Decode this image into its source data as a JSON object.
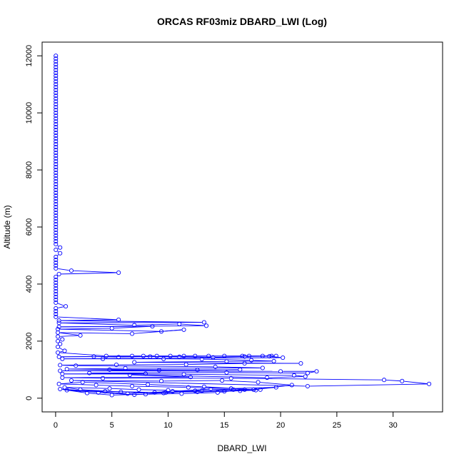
{
  "chart_data": {
    "type": "line",
    "title": "ORCAS RF03miz DBARD_LWI (Log)",
    "xlabel": "DBARD_LWI",
    "ylabel": "Altitude (m)",
    "xlim": [
      -1.2,
      34.4
    ],
    "ylim": [
      -480,
      12480
    ],
    "xticks": [
      0,
      5,
      10,
      15,
      20,
      25,
      30
    ],
    "yticks": [
      0,
      2000,
      4000,
      6000,
      8000,
      10000,
      12000
    ],
    "grid": false,
    "series_color": "#0000ff",
    "series": [
      {
        "values": [
          [
            0.02,
            12000
          ],
          [
            0.02,
            11900
          ],
          [
            0.02,
            11800
          ],
          [
            0.02,
            11700
          ],
          [
            0.02,
            11600
          ],
          [
            0.02,
            11500
          ],
          [
            0.02,
            11400
          ],
          [
            0.02,
            11300
          ],
          [
            0.02,
            11200
          ],
          [
            0.02,
            11100
          ],
          [
            0.02,
            11000
          ],
          [
            0.02,
            10900
          ],
          [
            0.02,
            10800
          ],
          [
            0.02,
            10700
          ],
          [
            0.02,
            10600
          ],
          [
            0.02,
            10500
          ],
          [
            0.02,
            10400
          ],
          [
            0.02,
            10300
          ],
          [
            0.02,
            10200
          ],
          [
            0.02,
            10100
          ],
          [
            0.02,
            10000
          ],
          [
            0.02,
            9900
          ],
          [
            0.02,
            9800
          ],
          [
            0.02,
            9700
          ],
          [
            0.02,
            9600
          ],
          [
            0.02,
            9500
          ],
          [
            0.02,
            9400
          ],
          [
            0.02,
            9300
          ],
          [
            0.02,
            9200
          ],
          [
            0.02,
            9100
          ],
          [
            0.02,
            9000
          ],
          [
            0.02,
            8900
          ],
          [
            0.02,
            8800
          ],
          [
            0.02,
            8700
          ],
          [
            0.02,
            8600
          ],
          [
            0.02,
            8500
          ],
          [
            0.02,
            8400
          ],
          [
            0.02,
            8300
          ],
          [
            0.02,
            8200
          ],
          [
            0.02,
            8100
          ],
          [
            0.02,
            8000
          ],
          [
            0.02,
            7900
          ],
          [
            0.02,
            7800
          ],
          [
            0.02,
            7700
          ],
          [
            0.02,
            7600
          ],
          [
            0.02,
            7500
          ],
          [
            0.02,
            7400
          ],
          [
            0.02,
            7300
          ],
          [
            0.02,
            7200
          ],
          [
            0.02,
            7100
          ],
          [
            0.02,
            7000
          ],
          [
            0.02,
            6900
          ],
          [
            0.02,
            6800
          ],
          [
            0.02,
            6700
          ],
          [
            0.02,
            6600
          ],
          [
            0.02,
            6500
          ],
          [
            0.02,
            6400
          ],
          [
            0.02,
            6300
          ],
          [
            0.02,
            6200
          ],
          [
            0.02,
            6100
          ],
          [
            0.02,
            6000
          ],
          [
            0.02,
            5900
          ],
          [
            0.02,
            5800
          ],
          [
            0.02,
            5700
          ],
          [
            0.02,
            5600
          ],
          [
            0.02,
            5500
          ],
          [
            0.02,
            5400
          ],
          [
            0.4,
            5280
          ],
          [
            0.02,
            5200
          ],
          [
            0.4,
            5080
          ],
          [
            0.02,
            4950
          ],
          [
            0.02,
            4850
          ],
          [
            0.02,
            4750
          ],
          [
            0.02,
            4650
          ],
          [
            0.02,
            4550
          ],
          [
            1.4,
            4470
          ],
          [
            5.6,
            4400
          ],
          [
            0.3,
            4350
          ],
          [
            0.02,
            4250
          ],
          [
            0.02,
            4150
          ],
          [
            0.02,
            4050
          ],
          [
            0.02,
            3950
          ],
          [
            0.02,
            3850
          ],
          [
            0.02,
            3750
          ],
          [
            0.02,
            3650
          ],
          [
            0.02,
            3550
          ],
          [
            0.02,
            3450
          ],
          [
            0.02,
            3350
          ],
          [
            0.9,
            3220
          ],
          [
            0.02,
            3150
          ],
          [
            0.02,
            3050
          ],
          [
            0.02,
            2950
          ],
          [
            0.02,
            2850
          ],
          [
            5.6,
            2750
          ],
          [
            0.3,
            2720
          ],
          [
            13.2,
            2660
          ],
          [
            0.3,
            2640
          ],
          [
            7.0,
            2560
          ],
          [
            11.0,
            2600
          ],
          [
            13.4,
            2540
          ],
          [
            0.3,
            2500
          ],
          [
            8.6,
            2520
          ],
          [
            5.0,
            2450
          ],
          [
            0.2,
            2420
          ],
          [
            9.4,
            2340
          ],
          [
            11.4,
            2400
          ],
          [
            6.8,
            2260
          ],
          [
            0.2,
            2300
          ],
          [
            2.2,
            2200
          ],
          [
            0.2,
            2160
          ],
          [
            0.6,
            2060
          ],
          [
            0.2,
            2000
          ],
          [
            0.4,
            1900
          ],
          [
            0.2,
            1800
          ],
          [
            0.8,
            1660
          ],
          [
            0.2,
            1600
          ],
          [
            4.5,
            1480
          ],
          [
            6.8,
            1480
          ],
          [
            7.8,
            1480
          ],
          [
            9.0,
            1480
          ],
          [
            10.2,
            1480
          ],
          [
            11.4,
            1480
          ],
          [
            12.4,
            1480
          ],
          [
            13.6,
            1480
          ],
          [
            15.0,
            1480
          ],
          [
            16.6,
            1480
          ],
          [
            17.2,
            1480
          ],
          [
            18.4,
            1480
          ],
          [
            19.2,
            1480
          ],
          [
            19.6,
            1480
          ],
          [
            0.3,
            1450
          ],
          [
            3.4,
            1460
          ],
          [
            5.6,
            1440
          ],
          [
            8.4,
            1460
          ],
          [
            11.0,
            1450
          ],
          [
            14.0,
            1430
          ],
          [
            16.8,
            1460
          ],
          [
            19.0,
            1470
          ],
          [
            20.2,
            1420
          ],
          [
            0.6,
            1380
          ],
          [
            4.2,
            1380
          ],
          [
            9.6,
            1380
          ],
          [
            13.0,
            1370
          ],
          [
            17.4,
            1330
          ],
          [
            19.4,
            1300
          ],
          [
            15.2,
            1290
          ],
          [
            7.0,
            1260
          ],
          [
            21.8,
            1220
          ],
          [
            16.8,
            1220
          ],
          [
            11.6,
            1180
          ],
          [
            5.4,
            1170
          ],
          [
            0.4,
            1160
          ],
          [
            1.8,
            1140
          ],
          [
            14.2,
            1100
          ],
          [
            18.4,
            1060
          ],
          [
            6.2,
            1050
          ],
          [
            1.0,
            1020
          ],
          [
            12.6,
            990
          ],
          [
            4.8,
            1000
          ],
          [
            9.2,
            980
          ],
          [
            16.4,
            1000
          ],
          [
            0.4,
            960
          ],
          [
            20.0,
            940
          ],
          [
            23.2,
            940
          ],
          [
            22.4,
            880
          ],
          [
            15.2,
            900
          ],
          [
            3.0,
            880
          ],
          [
            8.0,
            860
          ],
          [
            0.6,
            850
          ],
          [
            11.4,
            840
          ],
          [
            21.2,
            800
          ],
          [
            22.2,
            760
          ],
          [
            18.8,
            720
          ],
          [
            6.6,
            820
          ],
          [
            12.0,
            740
          ],
          [
            0.6,
            720
          ],
          [
            4.2,
            700
          ],
          [
            15.6,
            700
          ],
          [
            29.2,
            640
          ],
          [
            30.8,
            600
          ],
          [
            33.2,
            500
          ],
          [
            22.4,
            420
          ],
          [
            1.4,
            620
          ],
          [
            9.4,
            600
          ],
          [
            14.8,
            620
          ],
          [
            18.0,
            560
          ],
          [
            21.0,
            460
          ],
          [
            17.6,
            300
          ],
          [
            13.2,
            400
          ],
          [
            8.2,
            480
          ],
          [
            2.4,
            560
          ],
          [
            0.3,
            500
          ],
          [
            3.6,
            460
          ],
          [
            6.8,
            420
          ],
          [
            11.8,
            380
          ],
          [
            15.6,
            340
          ],
          [
            19.6,
            380
          ],
          [
            16.4,
            260
          ],
          [
            12.6,
            220
          ],
          [
            10.0,
            280
          ],
          [
            7.4,
            300
          ],
          [
            4.8,
            340
          ],
          [
            0.8,
            380
          ],
          [
            2.2,
            300
          ],
          [
            5.8,
            220
          ],
          [
            9.6,
            180
          ],
          [
            13.0,
            260
          ],
          [
            16.8,
            300
          ],
          [
            14.4,
            200
          ],
          [
            11.2,
            160
          ],
          [
            8.0,
            140
          ],
          [
            5.0,
            110
          ],
          [
            2.8,
            180
          ],
          [
            0.4,
            320
          ],
          [
            6.4,
            160
          ],
          [
            10.4,
            240
          ],
          [
            13.8,
            320
          ],
          [
            17.8,
            280
          ],
          [
            15.0,
            240
          ],
          [
            8.8,
            200
          ],
          [
            4.4,
            240
          ],
          [
            1.0,
            280
          ],
          [
            3.8,
            200
          ],
          [
            7.0,
            120
          ],
          [
            9.8,
            200
          ],
          [
            12.4,
            260
          ],
          [
            15.8,
            300
          ],
          [
            18.2,
            300
          ]
        ]
      }
    ]
  }
}
